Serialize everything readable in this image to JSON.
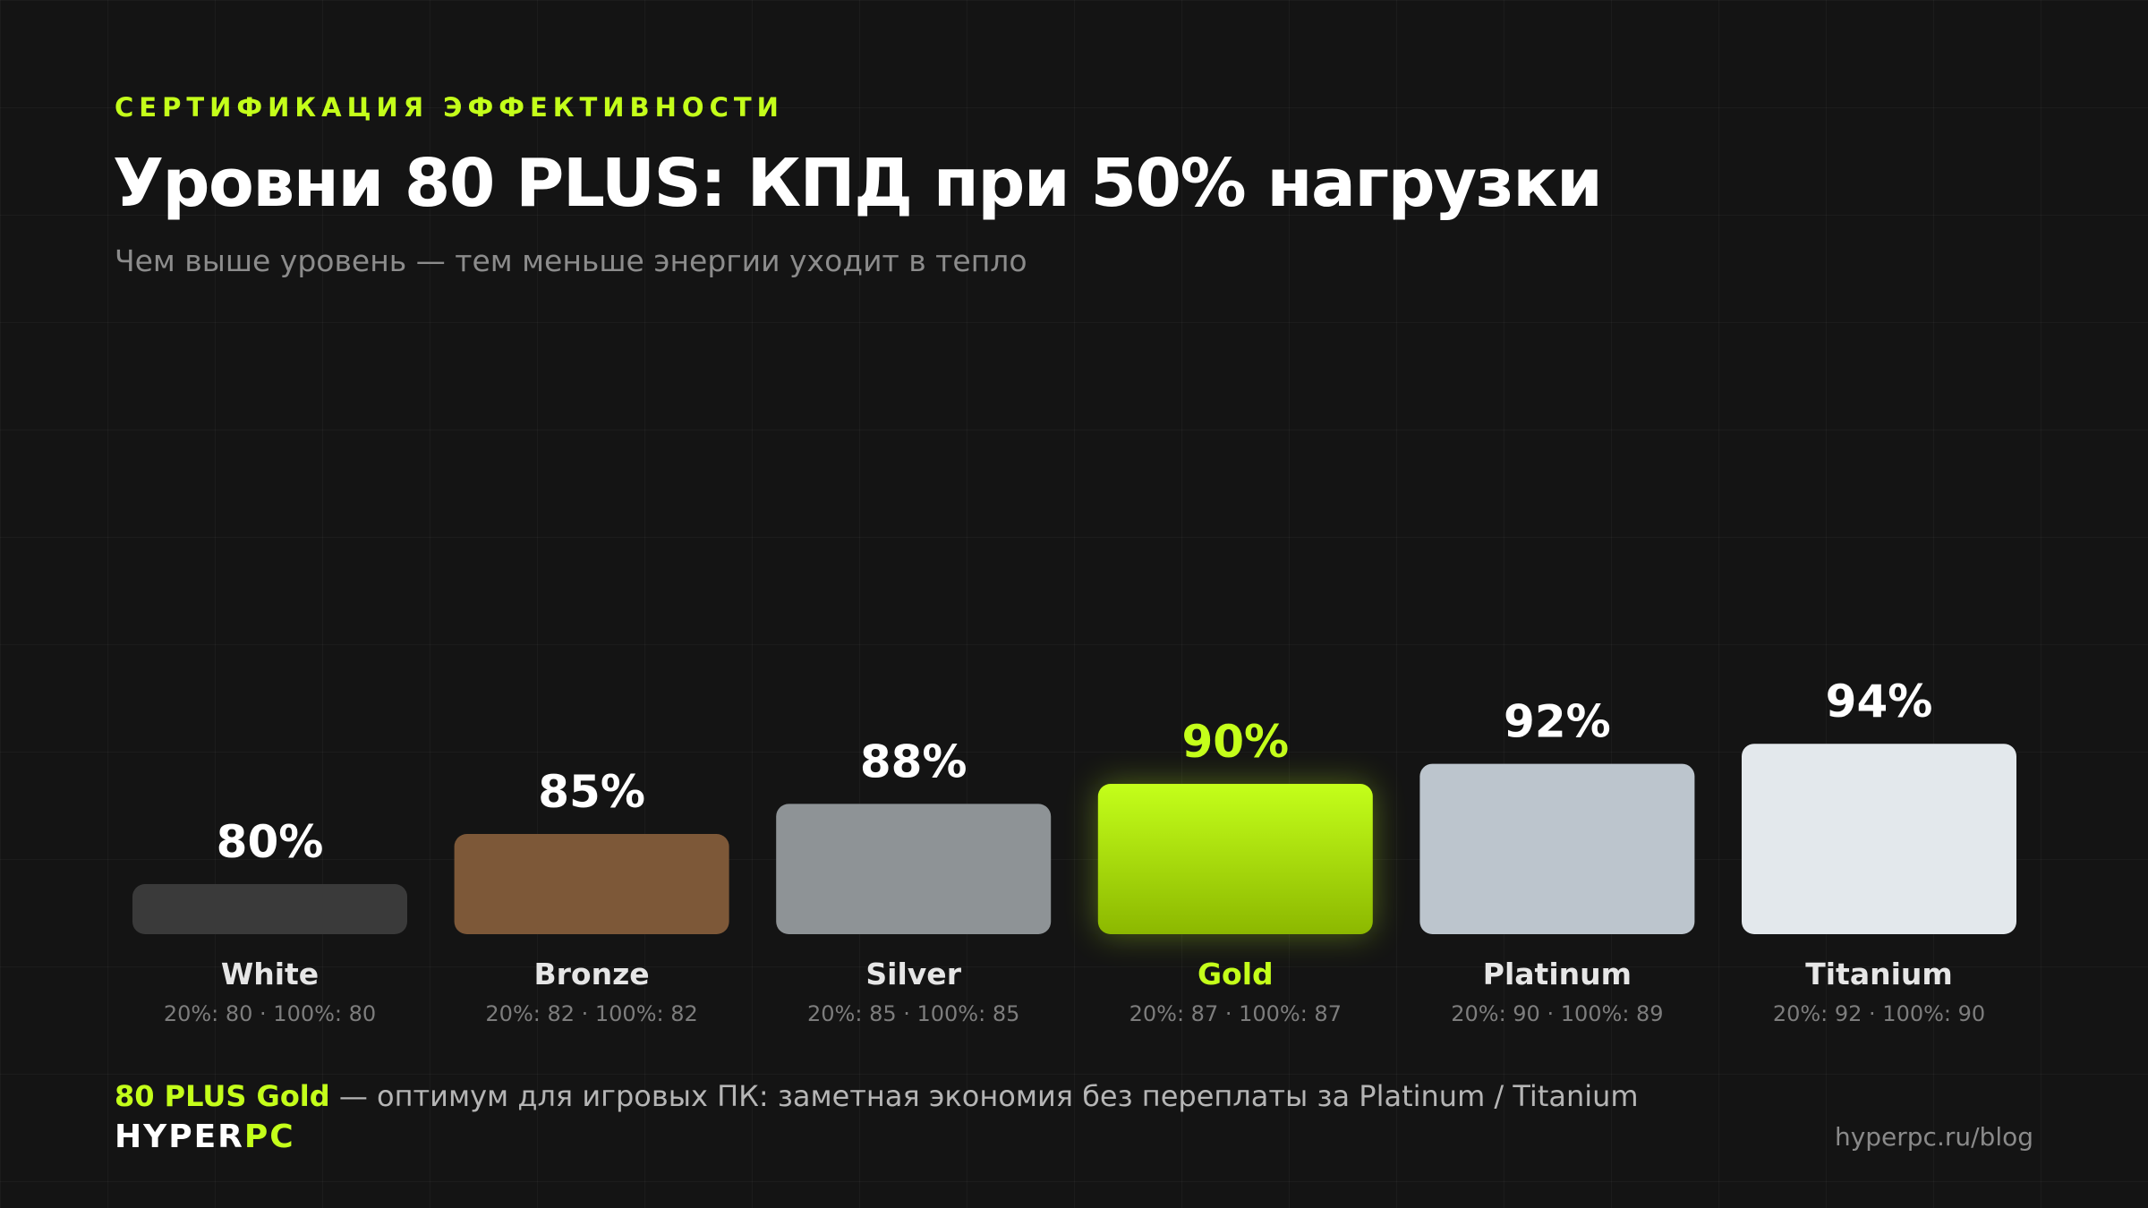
{
  "header": {
    "eyebrow": "СЕРТИФИКАЦИЯ ЭФФЕКТИВНОСТИ",
    "title": "Уровни 80 PLUS: КПД при 50% нагрузки",
    "subtitle": "Чем выше уровень — тем меньше энергии уходит в тепло"
  },
  "chart_data": {
    "type": "bar",
    "categories": [
      "White",
      "Bronze",
      "Silver",
      "Gold",
      "Platinum",
      "Titanium"
    ],
    "values": [
      80,
      85,
      88,
      90,
      92,
      94
    ],
    "value_labels": [
      "80%",
      "85%",
      "88%",
      "90%",
      "92%",
      "94%"
    ],
    "sublabels": [
      "20%: 80 · 100%: 80",
      "20%: 82 · 100%: 82",
      "20%: 85 · 100%: 85",
      "20%: 87 · 100%: 87",
      "20%: 90 · 100%: 89",
      "20%: 92 · 100%: 90"
    ],
    "highlight": "Gold",
    "colors": [
      "#3a3a3a",
      "#7d5838",
      "#8e9396",
      "#b5f20d",
      "#bcc5cd",
      "#e3e8ec"
    ],
    "highlight_gradient": [
      "#c4ff1a",
      "#8cb800"
    ],
    "accent": "#c4ff1a",
    "ylim": [
      75,
      95
    ],
    "grid": false,
    "legend": "none"
  },
  "footer": {
    "note_highlight": "80 PLUS Gold",
    "note_rest": " — оптимум для игровых ПК: заметная экономия без переплаты за Platinum / Titanium",
    "logo_a": "HYPER",
    "logo_b": "PC",
    "site": "hyperpc.ru/blog"
  }
}
